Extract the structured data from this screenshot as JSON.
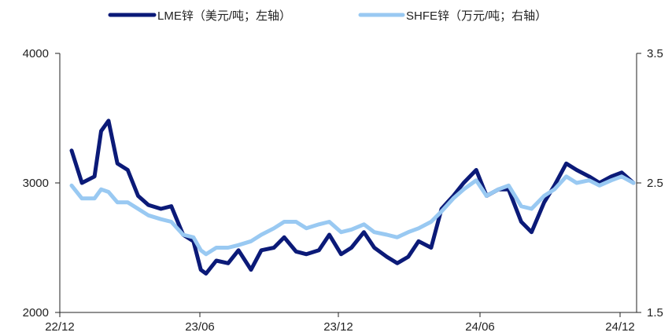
{
  "chart_data": {
    "type": "line",
    "title": "",
    "legend": {
      "placement": "top-center",
      "entries": [
        "LME锌（美元/吨；左轴）",
        "SHFE锌（万元/吨；右轴）"
      ]
    },
    "x_tick_labels": [
      "22/12",
      "23/06",
      "23/12",
      "24/06",
      "24/12"
    ],
    "y_left": {
      "ylim": [
        2000,
        4000
      ],
      "ticks": [
        "2000",
        "3000",
        "4000"
      ]
    },
    "y_right": {
      "ylim": [
        1.5,
        3.5
      ],
      "ticks": [
        "1.5",
        "2.5",
        "3.5"
      ]
    },
    "grid": false,
    "series": [
      {
        "name": "LME锌（美元/吨；左轴）",
        "axis": "left",
        "color": "#0b1a78",
        "x": [
          "2022-12-01",
          "2022-12-15",
          "2023-01-01",
          "2023-01-10",
          "2023-01-20",
          "2023-02-01",
          "2023-02-15",
          "2023-03-01",
          "2023-03-15",
          "2023-04-01",
          "2023-04-15",
          "2023-05-01",
          "2023-05-15",
          "2023-05-25",
          "2023-06-01",
          "2023-06-15",
          "2023-07-01",
          "2023-07-15",
          "2023-08-01",
          "2023-08-15",
          "2023-09-01",
          "2023-09-15",
          "2023-10-01",
          "2023-10-15",
          "2023-11-01",
          "2023-11-15",
          "2023-12-01",
          "2023-12-15",
          "2024-01-01",
          "2024-01-15",
          "2024-02-01",
          "2024-02-15",
          "2024-03-01",
          "2024-03-15",
          "2024-04-01",
          "2024-04-15",
          "2024-05-01",
          "2024-05-15",
          "2024-06-01",
          "2024-06-15",
          "2024-07-01",
          "2024-07-15",
          "2024-08-01",
          "2024-08-15",
          "2024-09-01",
          "2024-09-15",
          "2024-10-01",
          "2024-10-15",
          "2024-11-01",
          "2024-11-15",
          "2024-12-01",
          "2024-12-15",
          "2024-12-31"
        ],
        "values": [
          3250,
          3000,
          3050,
          3400,
          3480,
          3150,
          3100,
          2900,
          2830,
          2800,
          2820,
          2600,
          2550,
          2330,
          2300,
          2400,
          2380,
          2480,
          2330,
          2480,
          2500,
          2580,
          2470,
          2450,
          2480,
          2600,
          2450,
          2500,
          2620,
          2500,
          2430,
          2380,
          2430,
          2550,
          2500,
          2800,
          2900,
          3000,
          3100,
          2900,
          2950,
          2950,
          2700,
          2620,
          2850,
          2980,
          3150,
          3100,
          3050,
          3000,
          3050,
          3080,
          3000
        ]
      },
      {
        "name": "SHFE锌（万元/吨；右轴）",
        "axis": "right",
        "color": "#99c9f2",
        "x": [
          "2022-12-01",
          "2022-12-15",
          "2023-01-01",
          "2023-01-10",
          "2023-01-20",
          "2023-02-01",
          "2023-02-15",
          "2023-03-01",
          "2023-03-15",
          "2023-04-01",
          "2023-04-15",
          "2023-05-01",
          "2023-05-15",
          "2023-05-25",
          "2023-06-01",
          "2023-06-15",
          "2023-07-01",
          "2023-07-15",
          "2023-08-01",
          "2023-08-15",
          "2023-09-01",
          "2023-09-15",
          "2023-10-01",
          "2023-10-15",
          "2023-11-01",
          "2023-11-15",
          "2023-12-01",
          "2023-12-15",
          "2024-01-01",
          "2024-01-15",
          "2024-02-01",
          "2024-02-15",
          "2024-03-01",
          "2024-03-15",
          "2024-04-01",
          "2024-04-15",
          "2024-05-01",
          "2024-05-15",
          "2024-06-01",
          "2024-06-15",
          "2024-07-01",
          "2024-07-15",
          "2024-08-01",
          "2024-08-15",
          "2024-09-01",
          "2024-09-15",
          "2024-10-01",
          "2024-10-15",
          "2024-11-01",
          "2024-11-15",
          "2024-12-01",
          "2024-12-15",
          "2024-12-31"
        ],
        "values": [
          2.48,
          2.38,
          2.38,
          2.45,
          2.43,
          2.35,
          2.35,
          2.3,
          2.25,
          2.22,
          2.2,
          2.1,
          2.08,
          1.98,
          1.95,
          2.0,
          2.0,
          2.02,
          2.05,
          2.1,
          2.15,
          2.2,
          2.2,
          2.15,
          2.18,
          2.2,
          2.12,
          2.14,
          2.18,
          2.12,
          2.1,
          2.08,
          2.12,
          2.15,
          2.2,
          2.28,
          2.38,
          2.45,
          2.52,
          2.4,
          2.45,
          2.48,
          2.32,
          2.3,
          2.4,
          2.45,
          2.55,
          2.5,
          2.52,
          2.48,
          2.52,
          2.55,
          2.5
        ]
      }
    ]
  }
}
